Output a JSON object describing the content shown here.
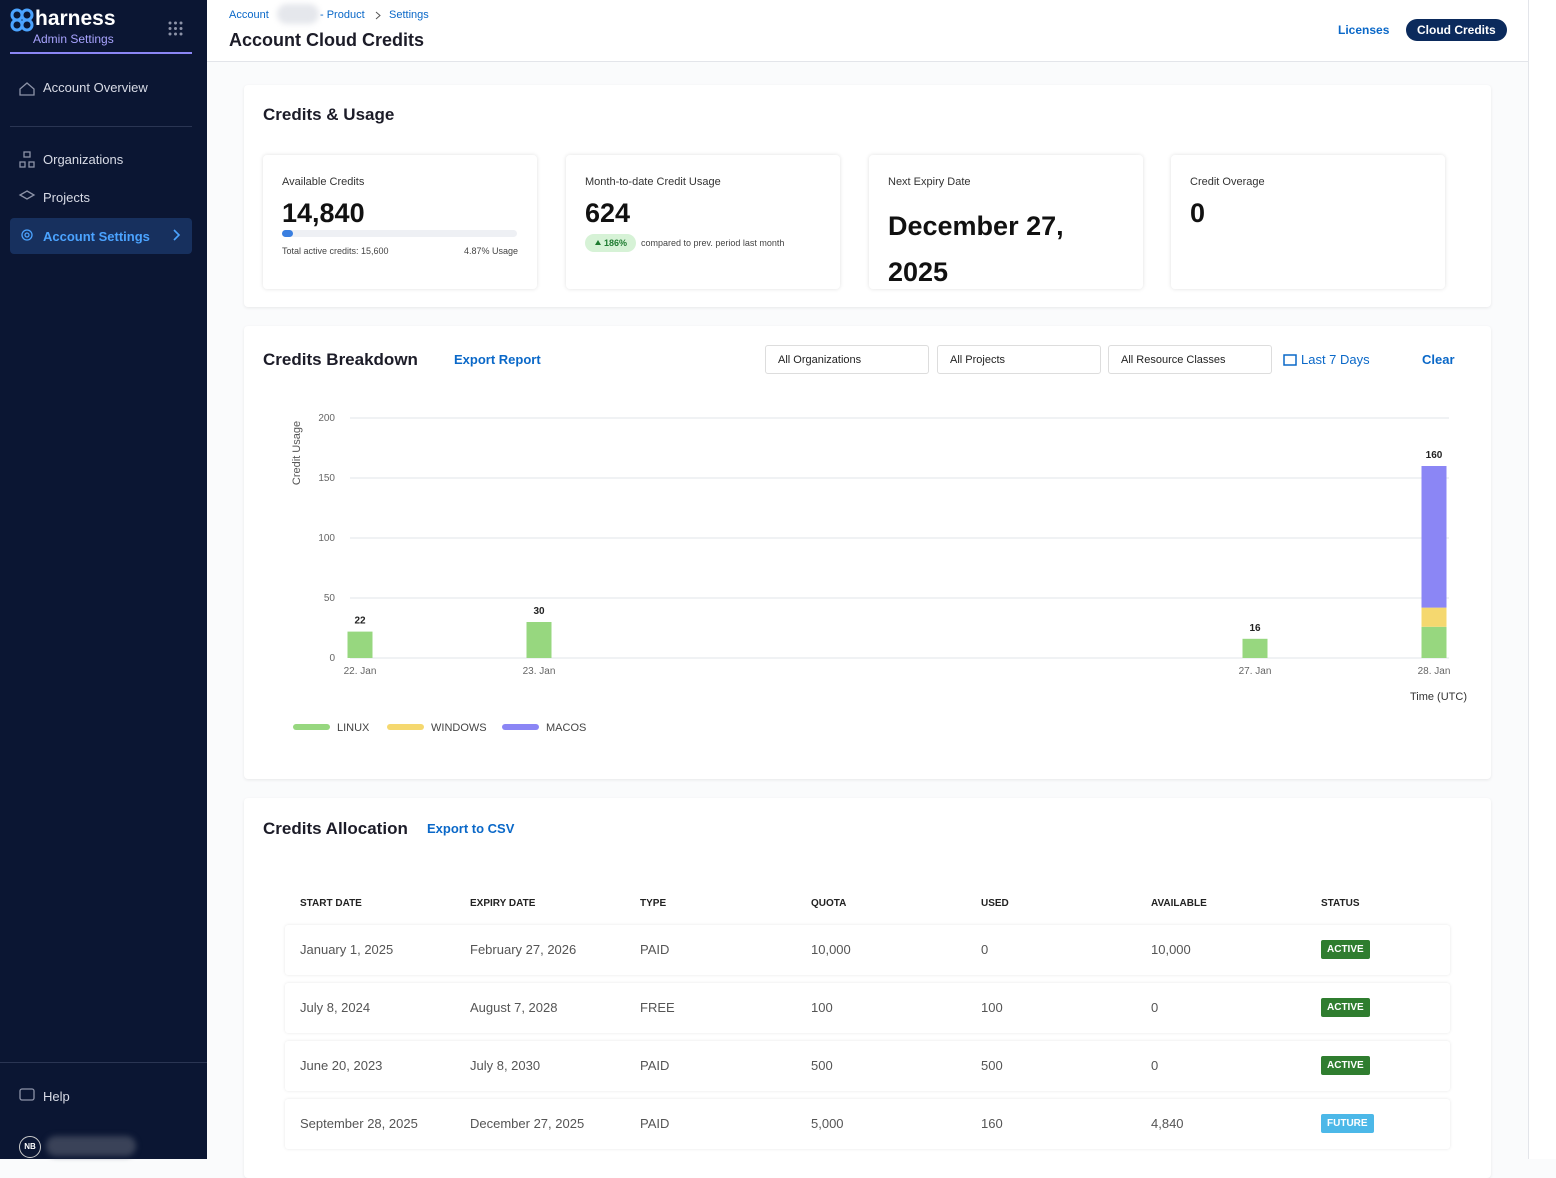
{
  "sidebar": {
    "logo": "harness",
    "subtitle": "Admin Settings",
    "nav": [
      "Account Overview",
      "Organizations",
      "Projects",
      "Account Settings"
    ],
    "help": "Help",
    "avatar": "NB"
  },
  "header": {
    "breadcrumbs": [
      "Account",
      "- Product",
      "Settings"
    ],
    "title": "Account Cloud Credits",
    "tabs": [
      "Licenses",
      "Cloud Credits"
    ]
  },
  "usage": {
    "title": "Credits & Usage",
    "available": {
      "label": "Available Credits",
      "value": "14,840",
      "total": "Total active credits: 15,600",
      "usage_label": "4.87% Usage",
      "usage_percent": 4.87
    },
    "month": {
      "label": "Month-to-date Credit Usage",
      "value": "624",
      "badge": "186%",
      "note": "compared to prev. period last month"
    },
    "expiry": {
      "label": "Next Expiry Date",
      "value": "December 27, 2025"
    },
    "overage": {
      "label": "Credit Overage",
      "value": "0"
    }
  },
  "breakdown": {
    "title": "Credits Breakdown",
    "export": "Export Report",
    "filters": [
      "All Organizations",
      "All Projects",
      "All Resource Classes"
    ],
    "range": "Last 7 Days",
    "clear": "Clear"
  },
  "chart_data": {
    "type": "bar",
    "stacked": true,
    "y_label": "Credit Usage",
    "x_label": "Time (UTC)",
    "categories": [
      "22. Jan",
      "23. Jan",
      null,
      null,
      null,
      "27. Jan",
      "28. Jan"
    ],
    "series": [
      {
        "name": "LINUX",
        "color": "#97d77f",
        "values": [
          22,
          30,
          null,
          null,
          null,
          16,
          26
        ]
      },
      {
        "name": "WINDOWS",
        "color": "#f5d86f",
        "values": [
          null,
          null,
          null,
          null,
          null,
          null,
          16
        ]
      },
      {
        "name": "MACOS",
        "color": "#8b86f5",
        "values": [
          null,
          null,
          null,
          null,
          null,
          null,
          118
        ]
      }
    ],
    "totals": [
      22,
      30,
      null,
      null,
      null,
      16,
      160
    ],
    "ylim": [
      0,
      200
    ],
    "yticks": [
      0,
      50,
      100,
      150,
      200
    ],
    "grid": true
  },
  "allocation": {
    "title": "Credits Allocation",
    "export": "Export to CSV",
    "columns": [
      "START DATE",
      "EXPIRY DATE",
      "TYPE",
      "QUOTA",
      "USED",
      "AVAILABLE",
      "STATUS"
    ],
    "rows": [
      {
        "cells": [
          "January 1, 2025",
          "February 27, 2026",
          "PAID",
          "10,000",
          "0",
          "10,000"
        ],
        "status": "ACTIVE",
        "status_color": "#2f7d2f"
      },
      {
        "cells": [
          "July 8, 2024",
          "August 7, 2028",
          "FREE",
          "100",
          "100",
          "0"
        ],
        "status": "ACTIVE",
        "status_color": "#2f7d2f"
      },
      {
        "cells": [
          "June 20, 2023",
          "July 8, 2030",
          "PAID",
          "500",
          "500",
          "0"
        ],
        "status": "ACTIVE",
        "status_color": "#2f7d2f"
      },
      {
        "cells": [
          "September 28, 2025",
          "December 27, 2025",
          "PAID",
          "5,000",
          "160",
          "4,840"
        ],
        "status": "FUTURE",
        "status_color": "#4cb8e8"
      }
    ]
  }
}
